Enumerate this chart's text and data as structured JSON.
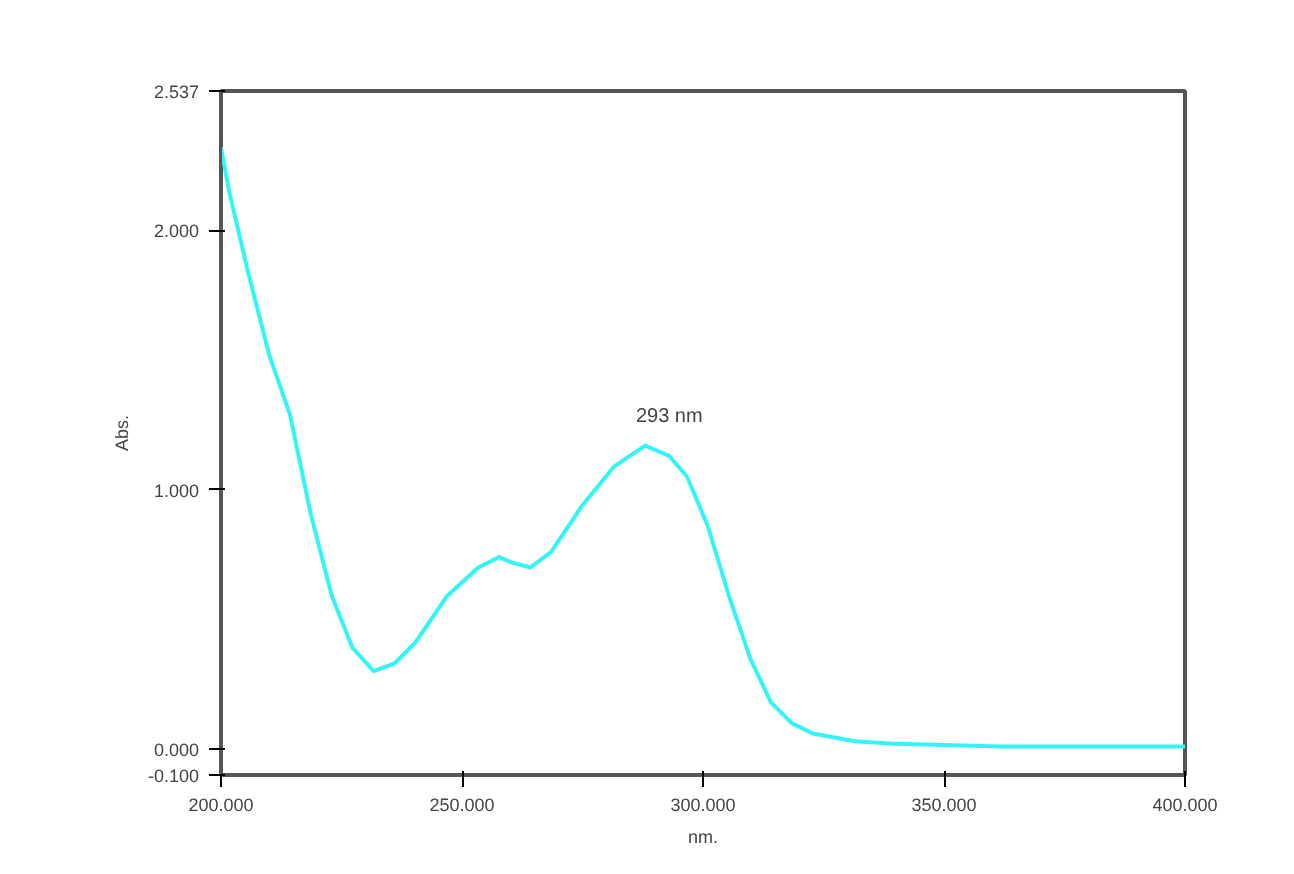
{
  "chart_data": {
    "type": "line",
    "xlabel": "nm.",
    "ylabel": "Abs.",
    "x": [
      200,
      201.7,
      205.6,
      210,
      214.3,
      218.7,
      223,
      227.3,
      231.7,
      236,
      240.3,
      246.9,
      253.4,
      257.7,
      260.3,
      264.2,
      268.5,
      275,
      281.6,
      288,
      293,
      296.7,
      301,
      305.4,
      309.8,
      314.1,
      318.4,
      322.8,
      331.5,
      340,
      361.8,
      400
    ],
    "series": [
      {
        "color": "#33f5f5",
        "values": [
          2.32,
          2.15,
          1.84,
          1.52,
          1.29,
          0.9,
          0.59,
          0.39,
          0.3,
          0.33,
          0.41,
          0.59,
          0.7,
          0.74,
          0.72,
          0.7,
          0.76,
          0.94,
          1.09,
          1.17,
          1.13,
          1.05,
          0.86,
          0.59,
          0.35,
          0.18,
          0.1,
          0.06,
          0.03,
          0.02,
          0.01,
          0.01
        ]
      }
    ],
    "xlim": [
      200,
      400
    ],
    "ylim": [
      -0.1,
      2.537
    ],
    "xticks": [
      {
        "value": 200,
        "label": "200.000"
      },
      {
        "value": 250,
        "label": "250.000"
      },
      {
        "value": 300,
        "label": "300.000"
      },
      {
        "value": 350,
        "label": "350.000"
      },
      {
        "value": 400,
        "label": "400.000"
      }
    ],
    "yticks": [
      {
        "value": -0.1,
        "label": "-0.100"
      },
      {
        "value": 0,
        "label": "0.000"
      },
      {
        "value": 1,
        "label": "1.000"
      },
      {
        "value": 2,
        "label": "2.000"
      },
      {
        "value": 2.537,
        "label": "2.537"
      }
    ],
    "annotations": [
      {
        "text": "293 nm",
        "x": 293,
        "y": 1.13
      }
    ],
    "grid": false,
    "marker": "none",
    "line_style": "solid"
  }
}
